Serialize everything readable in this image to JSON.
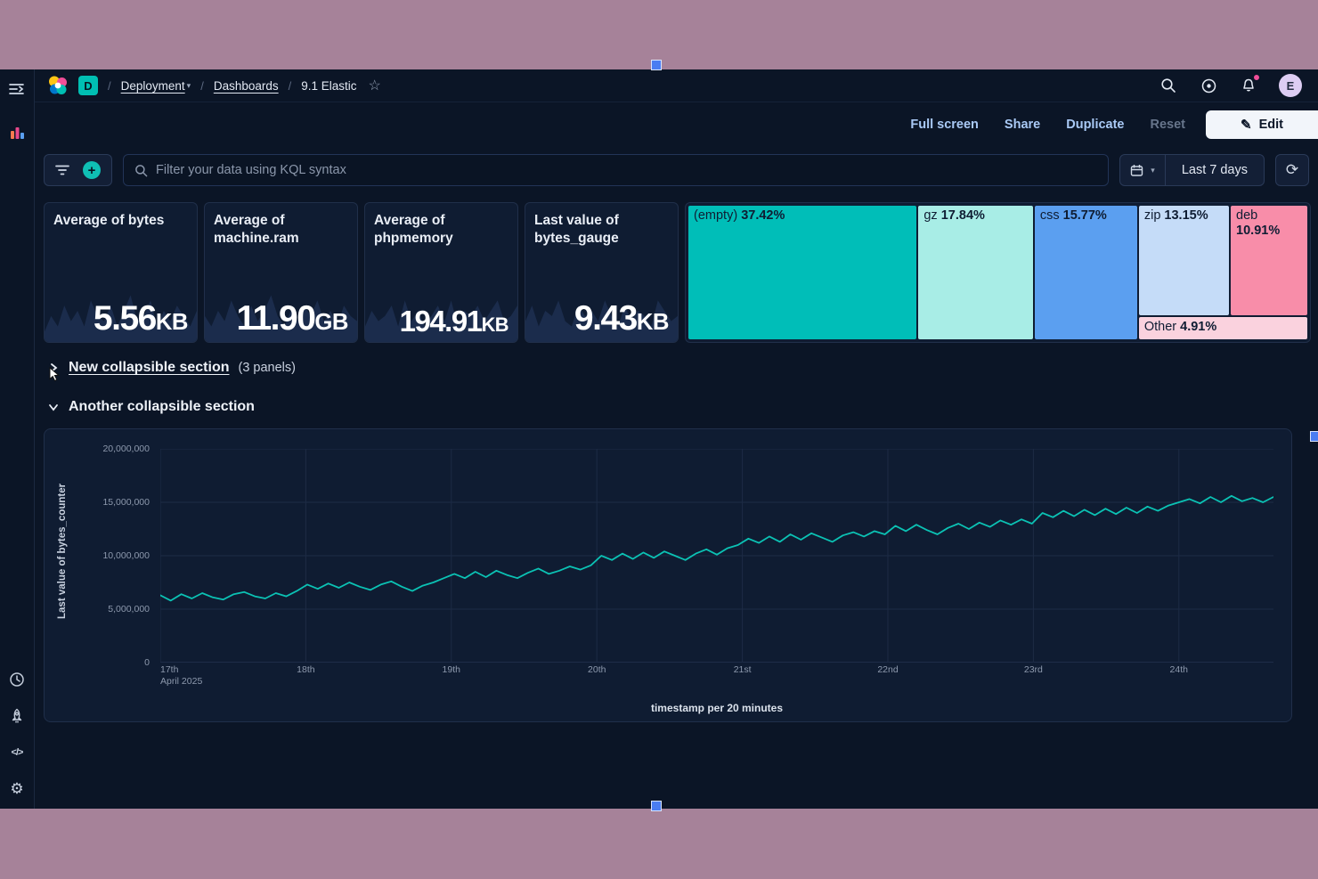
{
  "nav": {
    "deployment_badge": "D",
    "separator": "/",
    "breadcrumb": [
      "Deployment",
      "Dashboards",
      "9.1 Elastic"
    ],
    "avatar_initial": "E"
  },
  "toolbar": {
    "full_screen": "Full screen",
    "share": "Share",
    "duplicate": "Duplicate",
    "reset": "Reset",
    "edit": "Edit"
  },
  "filter_bar": {
    "placeholder": "Filter your data using KQL syntax",
    "time_range": "Last 7 days"
  },
  "icons": {
    "pencil": "✎",
    "gear": "⚙",
    "star": "☆",
    "refresh": "⟳",
    "chevron_down": "▾",
    "code": "</>",
    "plus": "+"
  },
  "metrics": [
    {
      "title": "Average of bytes",
      "value": "5.56",
      "unit": "KB",
      "sparkline": [
        0.2,
        0.5,
        0.3,
        0.7,
        0.4,
        0.6,
        0.3,
        0.8,
        0.5,
        0.4,
        0.7,
        0.3,
        0.6,
        0.9,
        0.4,
        0.5,
        0.8,
        0.3,
        0.6,
        0.4,
        0.7,
        0.5,
        0.3,
        0.6
      ]
    },
    {
      "title": "Average of machine.ram",
      "value": "11.90",
      "unit": "GB",
      "sparkline": [
        0.5,
        0.3,
        0.6,
        0.4,
        0.8,
        0.5,
        0.3,
        0.7,
        0.4,
        0.6,
        0.9,
        0.5,
        0.3,
        0.6,
        0.4,
        0.7,
        0.5,
        0.8,
        0.4,
        0.6,
        0.3,
        0.7,
        0.5,
        0.4
      ]
    },
    {
      "title": "Average of phpmemory",
      "value": "194.91",
      "unit": "KB",
      "sparkline": [
        0.3,
        0.6,
        0.4,
        0.5,
        0.7,
        0.3,
        0.8,
        0.4,
        0.6,
        0.3,
        0.5,
        0.7,
        0.4,
        0.8,
        0.3,
        0.6,
        0.5,
        0.7,
        0.4,
        0.6,
        0.8,
        0.4,
        0.5,
        0.7
      ]
    },
    {
      "title": "Last value of bytes_gauge",
      "value": "9.43",
      "unit": "KB",
      "sparkline": [
        0.4,
        0.7,
        0.3,
        0.6,
        0.5,
        0.8,
        0.4,
        0.3,
        0.7,
        0.5,
        0.6,
        0.4,
        0.8,
        0.5,
        0.3,
        0.7,
        0.4,
        0.6,
        0.5,
        0.3,
        0.8,
        0.6,
        0.4,
        0.5
      ]
    }
  ],
  "treemap": {
    "items": [
      {
        "label": "(empty)",
        "pct_label": "37.42%",
        "pct": 37.42,
        "color": "#00BEB8"
      },
      {
        "label": "gz",
        "pct_label": "17.84%",
        "pct": 17.84,
        "color": "#A8EDE6"
      },
      {
        "label": "css",
        "pct_label": "15.77%",
        "pct": 15.77,
        "color": "#5B9FF0"
      },
      {
        "label": "zip",
        "pct_label": "13.15%",
        "pct": 13.15,
        "color": "#C5DCF8"
      },
      {
        "label": "deb",
        "pct_label": "10.91%",
        "pct": 10.91,
        "color": "#F88DA9"
      },
      {
        "label": "Other",
        "pct_label": "4.91%",
        "pct": 4.91,
        "color": "#FAD2DE"
      }
    ]
  },
  "sections": [
    {
      "title": "New collapsible section",
      "panels_note": "(3 panels)"
    },
    {
      "title": "Another collapsible section"
    }
  ],
  "chart_data": {
    "type": "line",
    "ylabel": "Last value of bytes_counter",
    "xlabel": "timestamp per 20 minutes",
    "ylim": [
      0,
      20000000
    ],
    "yticks": [
      "20,000,000",
      "15,000,000",
      "10,000,000",
      "5,000,000",
      "0"
    ],
    "xticks": [
      "17th",
      "18th",
      "19th",
      "20th",
      "21st",
      "22nd",
      "23rd",
      "24th"
    ],
    "xtick_sublabel": "April 2025",
    "x_span_days": 7.65,
    "grid": true,
    "legend": false,
    "line_color": "#0BC2B4",
    "values": [
      6300000,
      5800000,
      6400000,
      6000000,
      6500000,
      6100000,
      5900000,
      6400000,
      6600000,
      6200000,
      6000000,
      6500000,
      6200000,
      6700000,
      7300000,
      6900000,
      7400000,
      7000000,
      7500000,
      7100000,
      6800000,
      7300000,
      7600000,
      7100000,
      6700000,
      7200000,
      7500000,
      7900000,
      8300000,
      7900000,
      8500000,
      8000000,
      8600000,
      8200000,
      7900000,
      8400000,
      8800000,
      8300000,
      8600000,
      9000000,
      8700000,
      9100000,
      10000000,
      9600000,
      10200000,
      9700000,
      10300000,
      9800000,
      10400000,
      10000000,
      9600000,
      10200000,
      10600000,
      10100000,
      10700000,
      11000000,
      11600000,
      11200000,
      11800000,
      11300000,
      12000000,
      11500000,
      12100000,
      11700000,
      11300000,
      11900000,
      12200000,
      11800000,
      12300000,
      12000000,
      12800000,
      12300000,
      12900000,
      12400000,
      12000000,
      12600000,
      13000000,
      12500000,
      13100000,
      12700000,
      13300000,
      12900000,
      13400000,
      13000000,
      14000000,
      13600000,
      14200000,
      13700000,
      14300000,
      13800000,
      14400000,
      13900000,
      14500000,
      14000000,
      14600000,
      14200000,
      14700000,
      15000000,
      15300000,
      14900000,
      15500000,
      15000000,
      15600000,
      15100000,
      15400000,
      15000000,
      15500000
    ]
  }
}
